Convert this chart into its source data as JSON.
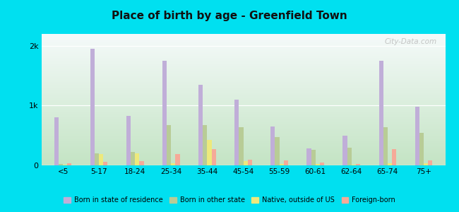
{
  "title": "Place of birth by age - Greenfield Town",
  "categories": [
    "<5",
    "5-17",
    "18-24",
    "25-34",
    "35-44",
    "45-54",
    "55-59",
    "60-61",
    "62-64",
    "65-74",
    "75+"
  ],
  "series": {
    "Born in state of residence": [
      800,
      1950,
      830,
      1750,
      1350,
      1100,
      650,
      280,
      500,
      1750,
      980
    ],
    "Born in other state": [
      25,
      200,
      220,
      680,
      680,
      640,
      470,
      260,
      290,
      640,
      545
    ],
    "Native, outside of US": [
      15,
      190,
      200,
      40,
      420,
      70,
      25,
      25,
      15,
      40,
      40
    ],
    "Foreign-born": [
      30,
      60,
      70,
      190,
      270,
      90,
      80,
      45,
      25,
      270,
      80
    ]
  },
  "colors": {
    "Born in state of residence": "#c0aed8",
    "Born in other state": "#b8cc96",
    "Native, outside of US": "#ede97c",
    "Foreign-born": "#f5aa98"
  },
  "ylim": [
    0,
    2200
  ],
  "yticks": [
    0,
    1000,
    2000
  ],
  "ytick_labels": [
    "0",
    "1k",
    "2k"
  ],
  "outer_background": "#00e0f0",
  "plot_bg_top": "#f5faf5",
  "plot_bg_bottom": "#c8e8c8",
  "watermark": "City-Data.com",
  "bar_width": 0.12,
  "figsize": [
    6.5,
    3.0
  ],
  "dpi": 100
}
